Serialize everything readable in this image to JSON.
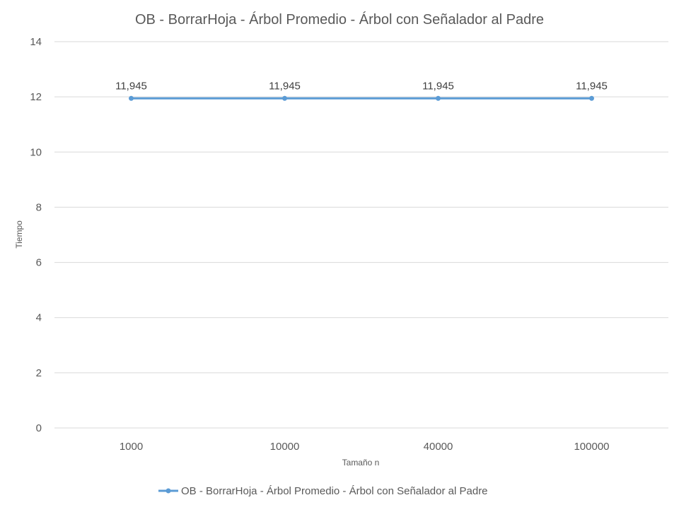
{
  "chart_data": {
    "type": "line",
    "title": "OB - BorrarHoja - Árbol Promedio - Árbol con Señalador al Padre",
    "xlabel": "Tamaño n",
    "ylabel": "Tiempo",
    "categories": [
      "1000",
      "10000",
      "40000",
      "100000"
    ],
    "series": [
      {
        "name": "OB - BorrarHoja - Árbol Promedio - Árbol con Señalador al Padre",
        "values": [
          11.945,
          11.945,
          11.945,
          11.945
        ],
        "data_labels": [
          "11,945",
          "11,945",
          "11,945",
          "11,945"
        ],
        "color": "#5b9bd5"
      }
    ],
    "ylim": [
      0,
      14
    ],
    "yticks": [
      0,
      2,
      4,
      6,
      8,
      10,
      12,
      14
    ],
    "grid": true,
    "legend_position": "bottom"
  }
}
